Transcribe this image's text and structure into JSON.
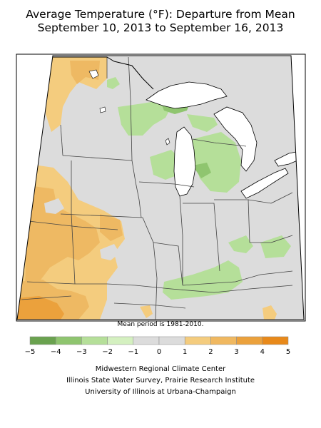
{
  "title": {
    "line1": "Average Temperature (°F): Departure from Mean",
    "line2": "September 10, 2013 to September 16, 2013"
  },
  "note": "Mean period is 1981-2010.",
  "legend": {
    "bins": [
      {
        "color": "#6aa24f"
      },
      {
        "color": "#8fc56f"
      },
      {
        "color": "#b5df99"
      },
      {
        "color": "#d4f0c0"
      },
      {
        "color": "#dcdcdc"
      },
      {
        "color": "#dcdcdc"
      },
      {
        "color": "#f4cc7e"
      },
      {
        "color": "#f0b860"
      },
      {
        "color": "#eba13c"
      },
      {
        "color": "#e8891a"
      }
    ],
    "labels": [
      "−5",
      "−4",
      "−3",
      "−2",
      "−1",
      "0",
      "1",
      "2",
      "3",
      "4",
      "5"
    ]
  },
  "credits": [
    "Midwestern Regional Climate Center",
    "Illinois State Water Survey, Prairie Research Institute",
    "University of Illinois at Urbana-Champaign"
  ],
  "colors": {
    "neutral": "#dcdcdc",
    "warm_light": "#f4cc7e",
    "warm_mid": "#eeb963",
    "warm_strong": "#eba13c",
    "cool_light": "#b5df99",
    "cool_mid": "#8fc56f"
  }
}
